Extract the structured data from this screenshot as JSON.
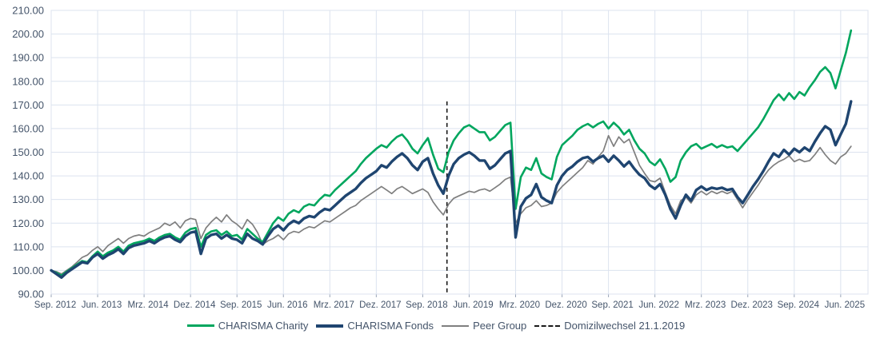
{
  "chart_data": {
    "type": "line",
    "title": "",
    "ylim": [
      90,
      210
    ],
    "grid": true,
    "legend_position": "bottom",
    "y_tick_values": [
      210,
      200,
      190,
      180,
      170,
      160,
      150,
      140,
      130,
      120,
      110,
      100,
      90
    ],
    "y_tick_labels": [
      "210.00",
      "200.00",
      "190.00",
      "180.00",
      "170.00",
      "160.00",
      "150.00",
      "140.00",
      "130.00",
      "120.00",
      "110.00",
      "100.00",
      "90.00"
    ],
    "x_tick_indices": [
      0,
      9,
      18,
      27,
      36,
      45,
      54,
      63,
      72,
      81,
      90,
      99,
      108,
      117,
      126,
      135,
      144,
      153
    ],
    "x_tick_labels": [
      "Sep. 2012",
      "Jun. 2013",
      "Mrz. 2014",
      "Dez. 2014",
      "Sep. 2015",
      "Jun. 2016",
      "Mrz. 2017",
      "Dez. 2017",
      "Sep. 2018",
      "Jun. 2019",
      "Mrz. 2020",
      "Dez. 2020",
      "Sep. 2021",
      "Jun. 2022",
      "Mrz. 2023",
      "Dez. 2023",
      "Sep. 2024",
      "Jun. 2025"
    ],
    "x_unit": "months (Sep 2012 = index 0)",
    "series": [
      {
        "name": "CHARISMA Charity",
        "color": "#00A65E",
        "stroke_width": 2.6,
        "values": [
          100,
          99,
          97.8,
          99.5,
          101,
          102.5,
          104,
          103.5,
          106,
          108,
          106,
          107.5,
          108.5,
          110,
          108,
          110.5,
          111.5,
          112,
          112.5,
          113.5,
          112.5,
          114,
          115,
          115.5,
          114,
          113,
          116,
          117.5,
          118,
          110,
          115,
          116.5,
          117,
          115,
          116.5,
          114.5,
          115,
          113,
          117.5,
          115.5,
          113.5,
          112,
          116,
          120,
          122.5,
          121,
          124,
          125.5,
          124.5,
          127,
          128,
          127.5,
          130,
          132,
          131.5,
          134,
          136,
          138,
          140,
          142,
          145,
          147.5,
          149.5,
          151.5,
          153,
          152,
          154.5,
          156.5,
          157.5,
          155,
          151.5,
          149.5,
          153,
          156,
          149,
          143,
          141.5,
          150,
          155,
          158,
          160.5,
          161.5,
          160,
          158.5,
          158.5,
          155,
          156.5,
          159,
          161.5,
          162.5,
          126,
          139.5,
          143.5,
          142.5,
          147.5,
          141,
          139.5,
          138.5,
          148,
          153,
          155,
          157,
          159.5,
          161,
          162,
          160.5,
          162,
          163,
          160,
          162.5,
          160.5,
          157.5,
          159.5,
          155,
          151.5,
          149.5,
          146,
          144.5,
          147,
          143,
          137.5,
          139.5,
          146.5,
          150,
          152.5,
          153.5,
          151.5,
          152.5,
          153.5,
          152,
          153,
          152,
          152.5,
          150.5,
          153,
          155.5,
          158,
          160.5,
          164,
          168,
          172,
          174.5,
          172,
          175,
          172.5,
          175.5,
          174,
          177.5,
          180.5,
          184,
          186,
          183.5,
          177,
          184.5,
          192,
          201.5
        ]
      },
      {
        "name": "CHARISMA Fonds",
        "color": "#1F4570",
        "stroke_width": 3.4,
        "values": [
          100,
          98.5,
          97,
          99,
          100.5,
          102,
          103.5,
          103,
          105.5,
          107,
          105,
          106.5,
          107.5,
          109,
          107,
          109.5,
          110.5,
          111,
          111.5,
          112.5,
          111.5,
          113,
          114,
          114.5,
          113,
          112,
          114.5,
          116,
          116.5,
          107,
          113.5,
          115,
          115.5,
          113.5,
          115,
          113.5,
          113,
          111.5,
          115.5,
          113.5,
          112.5,
          111,
          114.5,
          117.5,
          119,
          117,
          119.5,
          121,
          120,
          122,
          123,
          122.5,
          124.5,
          126,
          125.5,
          127.5,
          129.5,
          131.5,
          133,
          134.5,
          137,
          139,
          140.5,
          142,
          144.5,
          143.5,
          146,
          148,
          149.5,
          147.5,
          144.5,
          142.5,
          146,
          147.5,
          141,
          136,
          132.5,
          140,
          145,
          147.5,
          149,
          150,
          148.5,
          146.5,
          146.5,
          143,
          144.5,
          147,
          149.5,
          150.5,
          114,
          127,
          130.5,
          132,
          136.5,
          131,
          129.5,
          128.5,
          136,
          140,
          142.5,
          144,
          146,
          147.5,
          148,
          146,
          147.5,
          148.5,
          146,
          148.5,
          146.5,
          144,
          146,
          143,
          140.5,
          139,
          136,
          134.5,
          136.5,
          132,
          126,
          122,
          127.5,
          132,
          129.5,
          134,
          135.5,
          134,
          135,
          134.5,
          135,
          134,
          134.5,
          131,
          128.5,
          132,
          135.5,
          138.5,
          142,
          146,
          149.5,
          148,
          151,
          149,
          151.5,
          150,
          152,
          150.5,
          154.5,
          158,
          161,
          159.5,
          153,
          157.5,
          162,
          171.5
        ]
      },
      {
        "name": "Peer Group",
        "color": "#7F7F7F",
        "stroke_width": 1.7,
        "values": [
          100,
          99.5,
          98.5,
          100,
          101.5,
          103.5,
          105.5,
          106.5,
          108.5,
          110,
          108,
          110.5,
          112,
          113.5,
          111.5,
          113.5,
          114.5,
          115,
          114.5,
          116,
          117,
          118,
          120,
          119,
          120.5,
          118,
          121,
          122,
          121.5,
          113.5,
          118,
          120.5,
          122.5,
          120.5,
          123.5,
          121,
          119.5,
          117.5,
          121.5,
          119.5,
          116,
          111,
          112.5,
          113.5,
          115,
          113,
          115.5,
          116.5,
          116,
          117.5,
          118.5,
          118,
          119.5,
          121,
          120.5,
          122,
          123.5,
          125,
          126.5,
          127.5,
          129.5,
          131,
          132.5,
          134,
          135.5,
          134,
          132.5,
          134.5,
          135.5,
          134,
          132.5,
          133.5,
          134.5,
          133,
          129,
          126,
          123.5,
          128,
          130.5,
          131.5,
          132.5,
          133.5,
          133,
          134,
          134.5,
          133.5,
          135,
          136.5,
          138.5,
          139.5,
          120,
          124,
          126.5,
          127.5,
          129.5,
          127,
          127.5,
          128.5,
          133,
          135.5,
          137.5,
          139.5,
          141.5,
          143.5,
          146.5,
          145,
          148,
          150.5,
          157,
          152.5,
          156.5,
          154,
          155.5,
          150,
          144.5,
          141,
          138,
          137.5,
          139,
          133,
          127.5,
          124,
          129.5,
          131,
          128.5,
          132,
          133.5,
          132,
          133.5,
          132.5,
          133.5,
          132.5,
          133.5,
          130,
          126.5,
          130,
          133,
          136,
          139.5,
          142.5,
          144.5,
          146,
          147,
          148.5,
          146,
          147,
          146,
          146.5,
          149,
          152,
          149,
          146.5,
          145,
          148,
          149.5,
          152.5
        ]
      }
    ],
    "annotation": {
      "label": "Domizilwechsel 21.1.2019",
      "x_index": 76.7,
      "top_value": 171.5,
      "color": "#1A1A1A",
      "style": "dashed"
    }
  },
  "legend": {
    "charity_label": "CHARISMA Charity",
    "fonds_label": "CHARISMA Fonds",
    "peer_label": "Peer Group",
    "domizil_label": "Domizilwechsel 21.1.2019"
  },
  "colors": {
    "axis_text": "#44546A",
    "grid": "#DCE3EF",
    "background": "#FFFFFF"
  }
}
